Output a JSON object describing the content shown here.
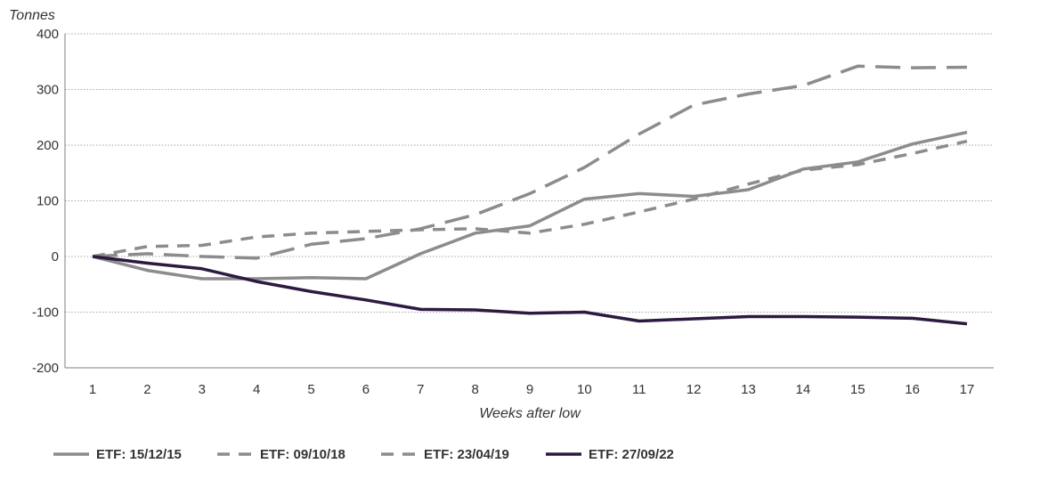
{
  "chart_data": {
    "type": "line",
    "ylabel": "Tonnes",
    "xlabel": "Weeks after low",
    "ylim": [
      -200,
      400
    ],
    "y_ticks": [
      400,
      300,
      200,
      100,
      0,
      -100,
      -200
    ],
    "y_tick_labels": [
      "400",
      "300",
      "200",
      "100",
      "0",
      "-100",
      "-200"
    ],
    "grid": "horizontal dotted",
    "legend_position": "bottom",
    "x": [
      1,
      2,
      3,
      4,
      5,
      6,
      7,
      8,
      9,
      10,
      11,
      12,
      13,
      14,
      15,
      16,
      17
    ],
    "x_tick_labels": [
      "1",
      "2",
      "3",
      "4",
      "5",
      "6",
      "7",
      "8",
      "9",
      "10",
      "11",
      "12",
      "13",
      "14",
      "15",
      "16",
      "17"
    ],
    "series": [
      {
        "name": "ETF: 15/12/15",
        "style": "solid",
        "color": "#8c8c8c",
        "values": [
          0,
          -25,
          -40,
          -40,
          -38,
          -40,
          5,
          42,
          55,
          103,
          113,
          108,
          120,
          157,
          170,
          202,
          223
        ]
      },
      {
        "name": "ETF: 09/10/18",
        "style": "dashed",
        "color": "#8c8c8c",
        "values": [
          0,
          18,
          20,
          35,
          42,
          45,
          48,
          50,
          42,
          58,
          80,
          103,
          130,
          155,
          165,
          185,
          207
        ]
      },
      {
        "name": "ETF: 23/04/19",
        "style": "long-dashed",
        "color": "#8c8c8c",
        "values": [
          0,
          5,
          0,
          -3,
          22,
          32,
          50,
          75,
          113,
          160,
          220,
          272,
          292,
          307,
          342,
          339,
          340
        ]
      },
      {
        "name": "ETF: 27/09/22",
        "style": "solid",
        "color": "#2c1a40",
        "values": [
          0,
          -12,
          -22,
          -45,
          -63,
          -78,
          -95,
          -96,
          -102,
          -100,
          -116,
          -112,
          -108,
          -108,
          -109,
          -111,
          -121
        ]
      }
    ]
  }
}
